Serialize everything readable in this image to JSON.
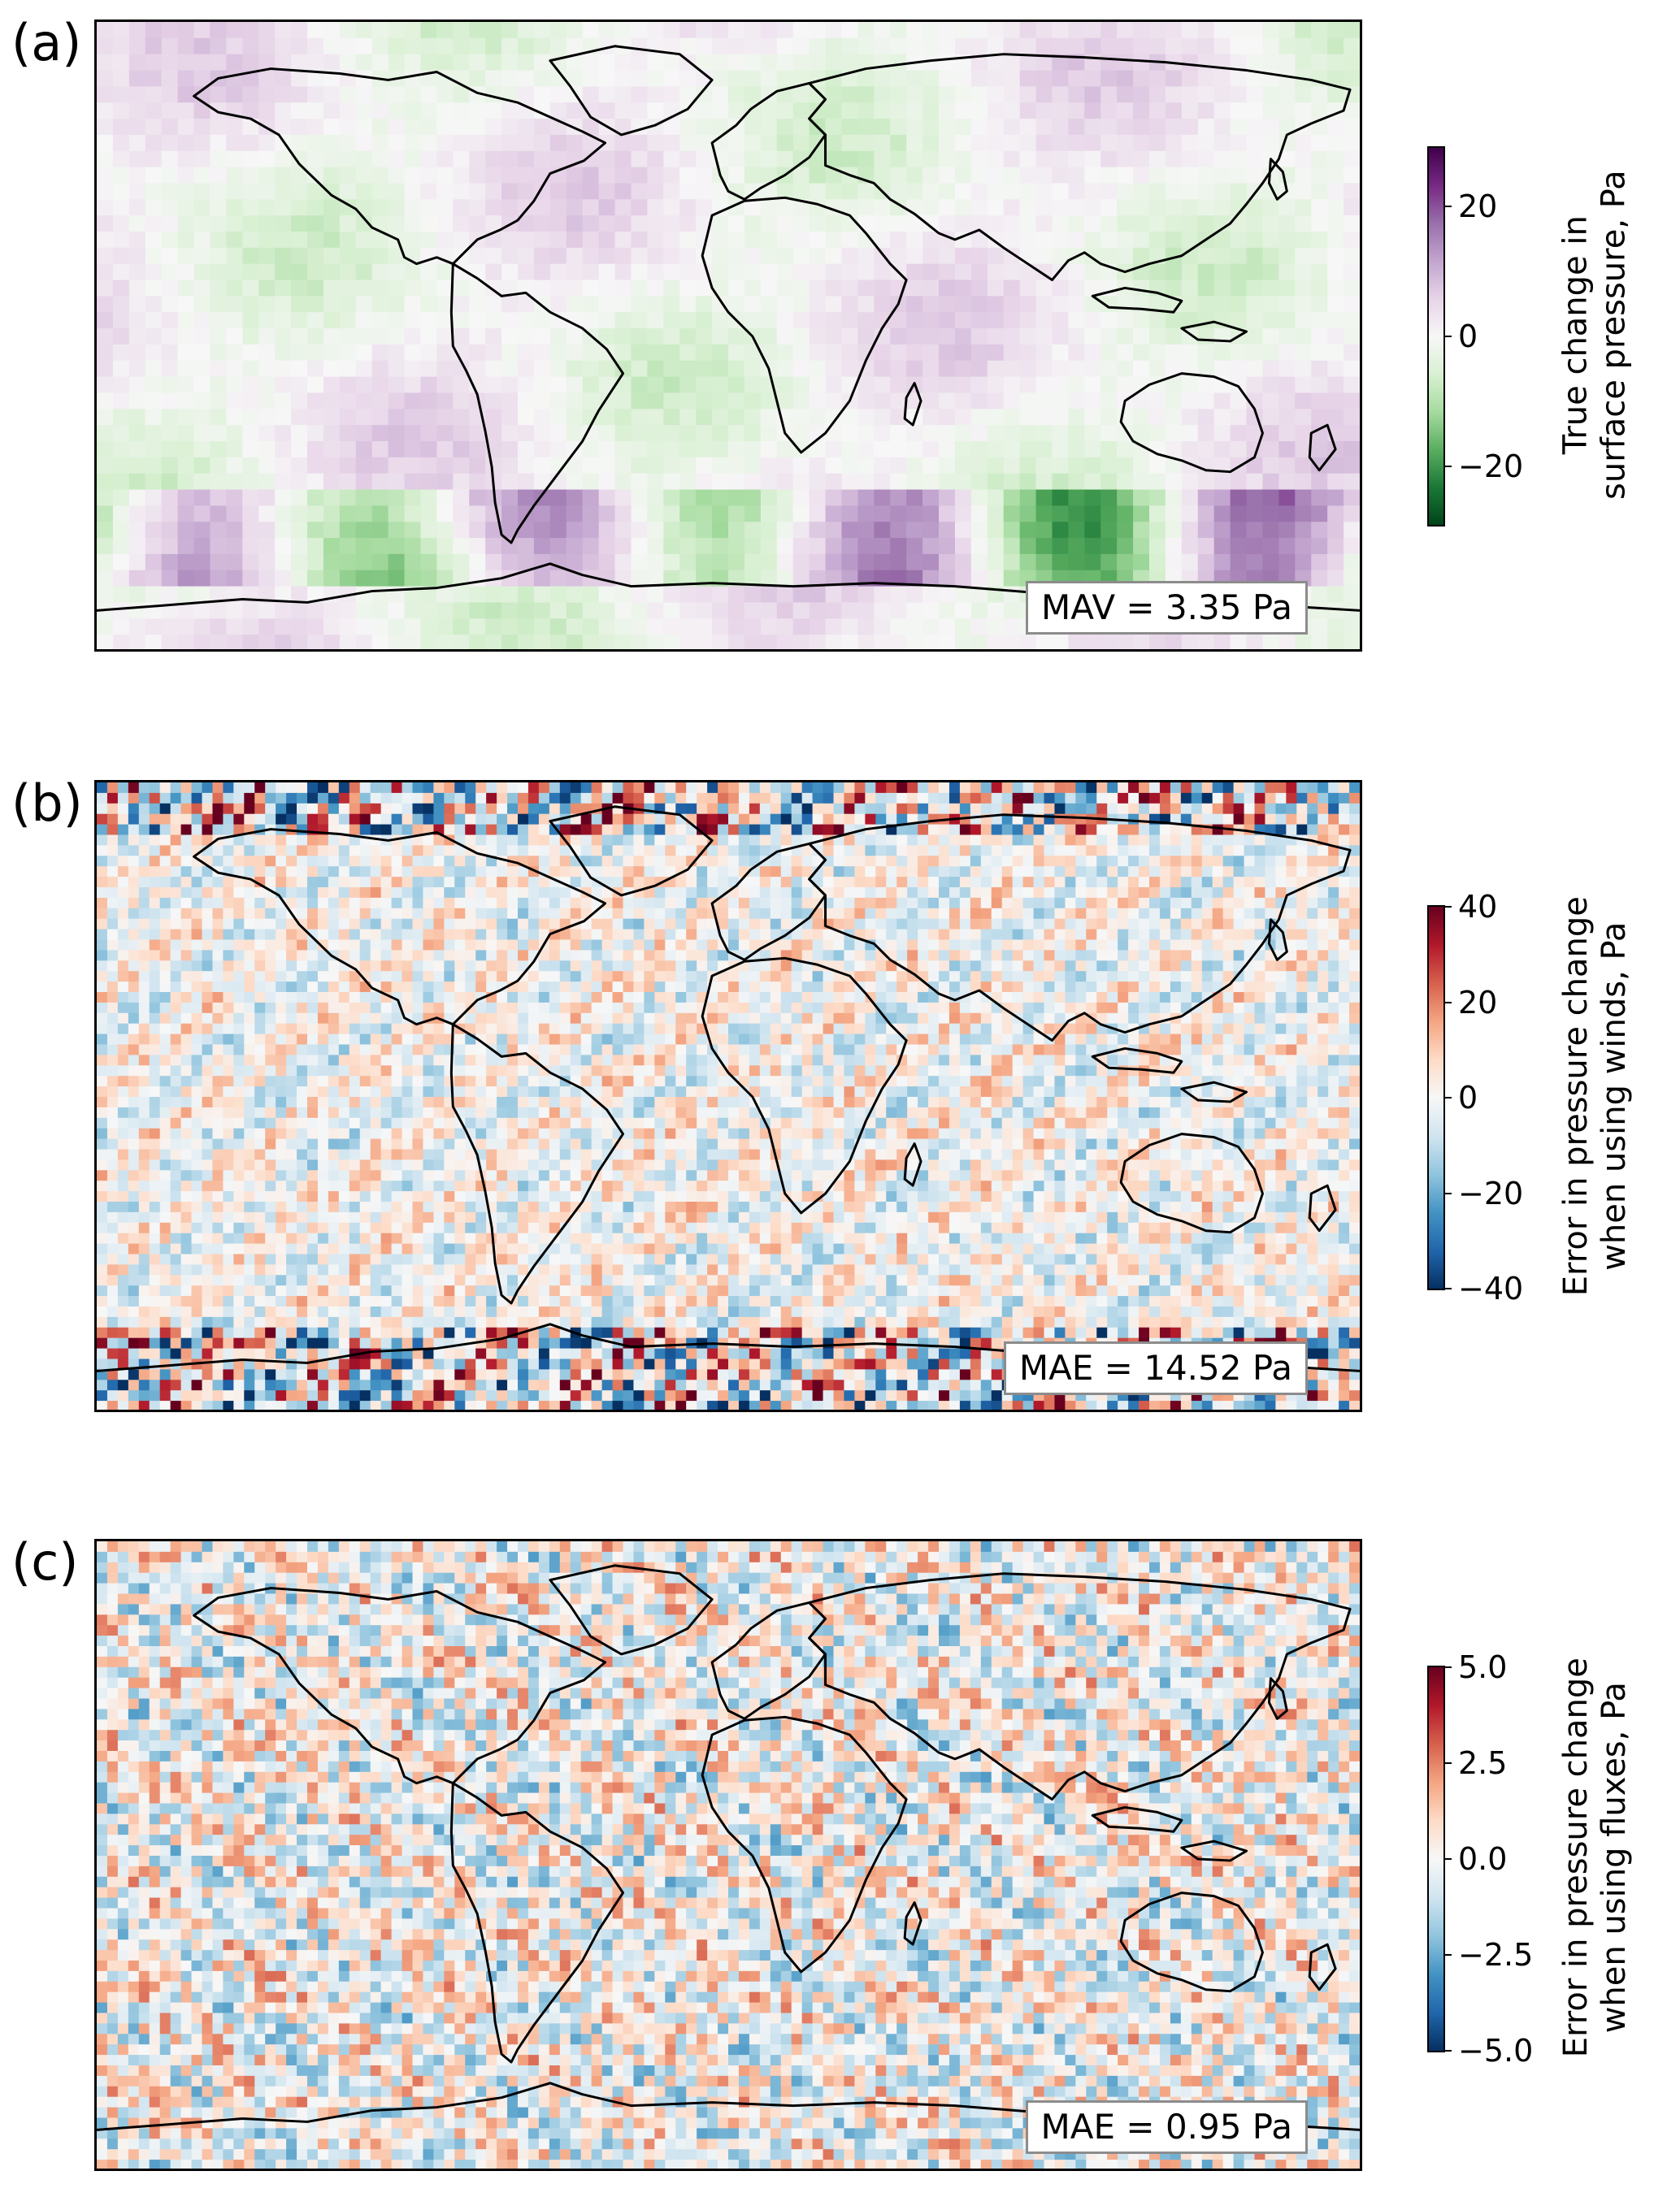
{
  "panels": [
    {
      "label": "(a)",
      "stat": "MAV = 3.35 Pa",
      "colorbar": {
        "title_line1": "True change in",
        "title_line2": "surface pressure, Pa",
        "ticks": [
          "20",
          "0",
          "−20"
        ],
        "tick_values": [
          20,
          0,
          -20
        ],
        "range": [
          -29,
          29
        ],
        "colormap": "PRGn",
        "colors": [
          "#00441b",
          "#1b7837",
          "#5aae61",
          "#a6dba0",
          "#d9f0d3",
          "#f7f7f7",
          "#e7d4e8",
          "#c2a5cf",
          "#9970ab",
          "#762a83",
          "#40004b"
        ]
      }
    },
    {
      "label": "(b)",
      "stat": "MAE = 14.52 Pa",
      "colorbar": {
        "title_line1": "Error in pressure change",
        "title_line2": "when using winds, Pa",
        "ticks": [
          "40",
          "20",
          "0",
          "−20",
          "−40"
        ],
        "tick_values": [
          40,
          20,
          0,
          -20,
          -40
        ],
        "range": [
          -40,
          40
        ],
        "colormap": "RdBu_r",
        "colors": [
          "#053061",
          "#2166ac",
          "#4393c3",
          "#92c5de",
          "#d1e5f0",
          "#f7f7f7",
          "#fddbc7",
          "#f4a582",
          "#d6604d",
          "#b2182b",
          "#67001f"
        ]
      }
    },
    {
      "label": "(c)",
      "stat": "MAE = 0.95 Pa",
      "colorbar": {
        "title_line1": "Error in pressure change",
        "title_line2": "when using fluxes, Pa",
        "ticks": [
          "5.0",
          "2.5",
          "0.0",
          "−2.5",
          "−5.0"
        ],
        "tick_values": [
          5,
          2.5,
          0,
          -2.5,
          -5
        ],
        "range": [
          -5,
          5
        ],
        "colormap": "RdBu_r",
        "colors": [
          "#053061",
          "#2166ac",
          "#4393c3",
          "#92c5de",
          "#d1e5f0",
          "#f7f7f7",
          "#fddbc7",
          "#f4a582",
          "#d6604d",
          "#b2182b",
          "#67001f"
        ]
      }
    }
  ]
}
